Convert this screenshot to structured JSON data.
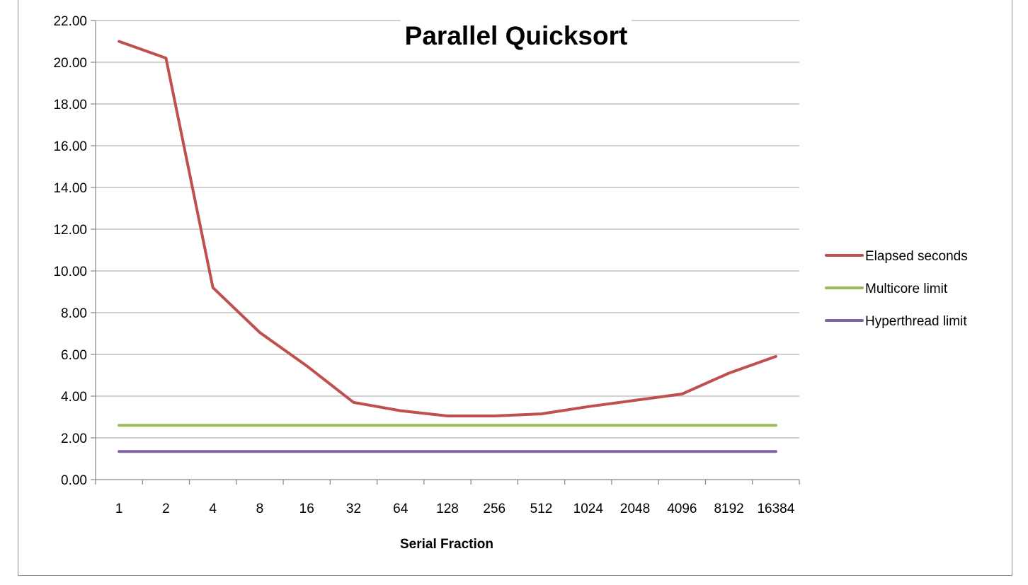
{
  "chart_data": {
    "type": "line",
    "title": "Parallel Quicksort",
    "xlabel": "Serial Fraction",
    "ylabel": "",
    "categories": [
      "1",
      "2",
      "4",
      "8",
      "16",
      "32",
      "64",
      "128",
      "256",
      "512",
      "1024",
      "2048",
      "4096",
      "8192",
      "16384"
    ],
    "ylim": [
      0,
      22
    ],
    "yticks": [
      "0.00",
      "2.00",
      "4.00",
      "6.00",
      "8.00",
      "10.00",
      "12.00",
      "14.00",
      "16.00",
      "18.00",
      "20.00",
      "22.00"
    ],
    "grid": true,
    "legend_position": "right",
    "series": [
      {
        "name": "Elapsed seconds",
        "color": "#c0504d",
        "values": [
          21.0,
          20.2,
          9.2,
          7.05,
          5.45,
          3.7,
          3.3,
          3.05,
          3.05,
          3.15,
          3.5,
          3.8,
          4.1,
          5.1,
          5.9
        ]
      },
      {
        "name": "Multicore limit",
        "color": "#9bbb59",
        "values": [
          2.6,
          2.6,
          2.6,
          2.6,
          2.6,
          2.6,
          2.6,
          2.6,
          2.6,
          2.6,
          2.6,
          2.6,
          2.6,
          2.6,
          2.6
        ]
      },
      {
        "name": "Hyperthread limit",
        "color": "#8064a2",
        "values": [
          1.35,
          1.35,
          1.35,
          1.35,
          1.35,
          1.35,
          1.35,
          1.35,
          1.35,
          1.35,
          1.35,
          1.35,
          1.35,
          1.35,
          1.35
        ]
      }
    ]
  }
}
